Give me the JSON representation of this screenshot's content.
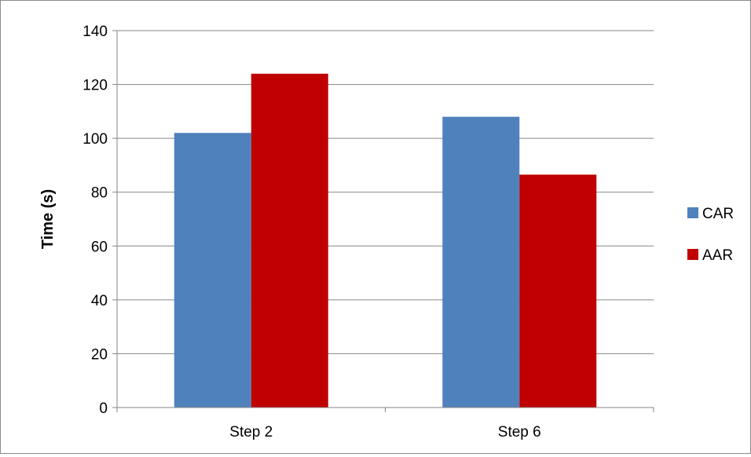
{
  "chart_data": {
    "type": "bar",
    "categories": [
      "Step 2",
      "Step 6"
    ],
    "series": [
      {
        "name": "CAR",
        "color": "#4f81bd",
        "values": [
          102,
          108
        ]
      },
      {
        "name": "AAR",
        "color": "#c00000",
        "values": [
          124,
          86.5
        ]
      }
    ],
    "title": "",
    "xlabel": "",
    "ylabel": "Time (s)",
    "ylim": [
      0,
      140
    ],
    "yticks": [
      0,
      20,
      40,
      60,
      80,
      100,
      120,
      140
    ],
    "yticklabels": [
      "0",
      "20",
      "40",
      "60",
      "80",
      "100",
      "120",
      "140"
    ],
    "grid": true,
    "legend_position": "right"
  }
}
